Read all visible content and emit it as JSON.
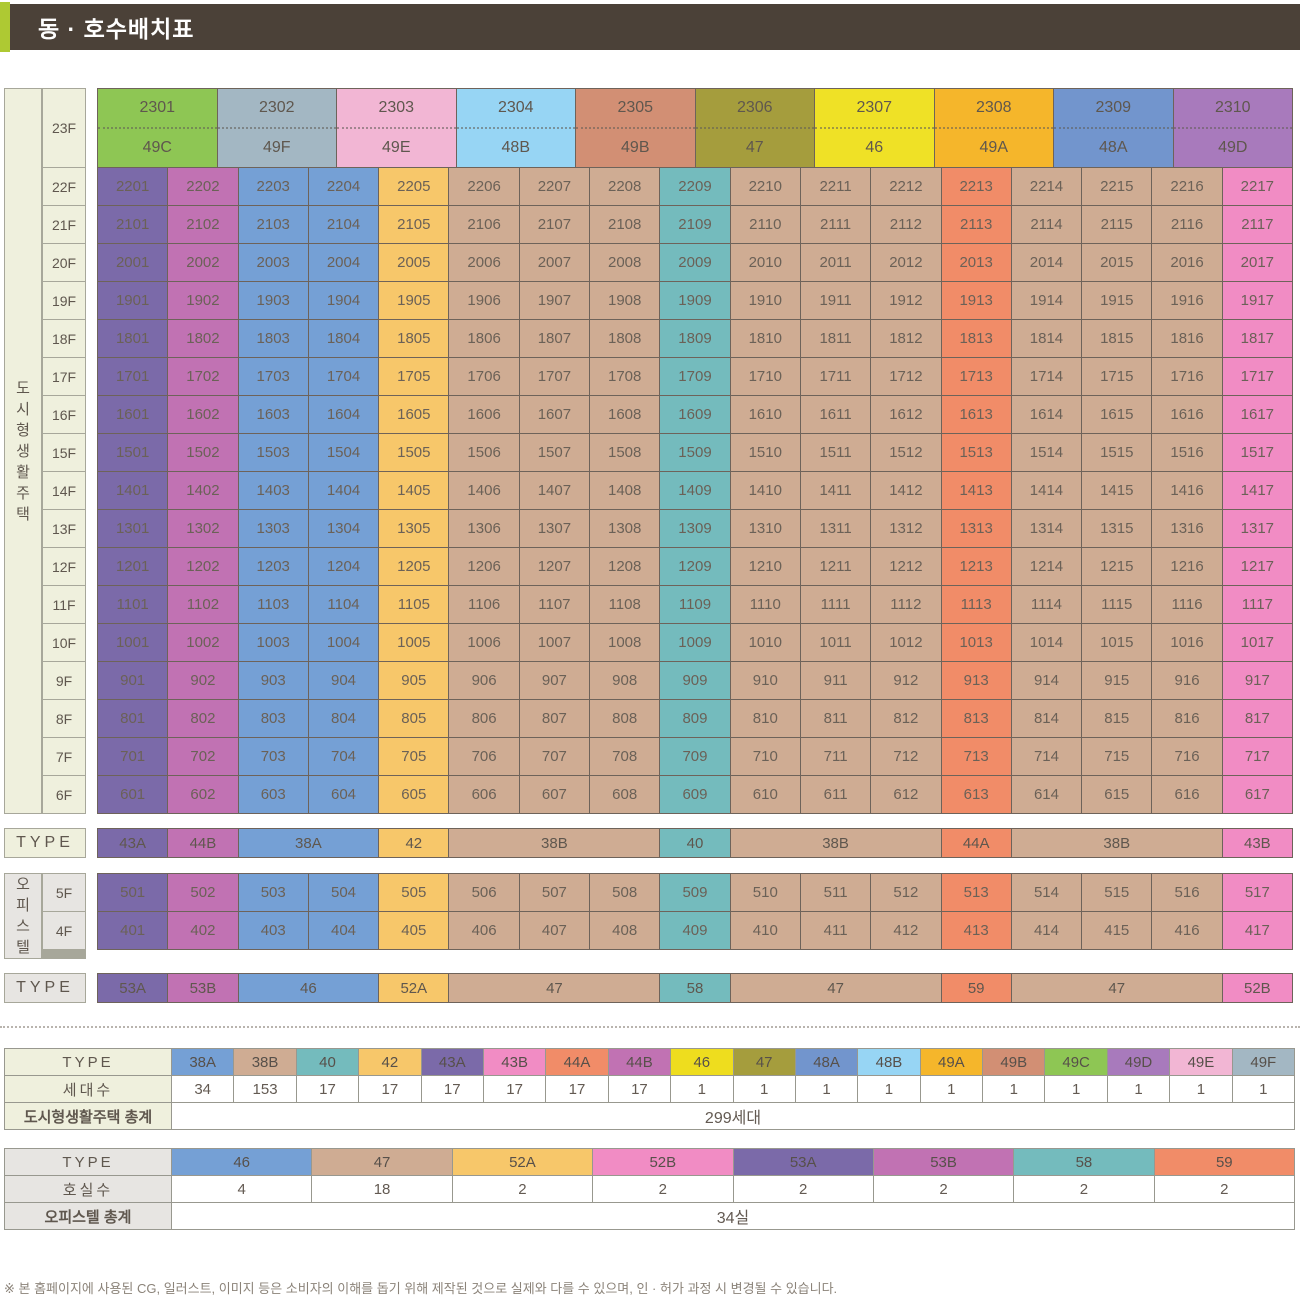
{
  "title": "동 · 호수배치표",
  "colors": {
    "accent_green": "#aec933",
    "header_brown": "#4b4138",
    "cream_label": "#eff0dd",
    "gray_label": "#e7e5e2",
    "grid_border": "#6e635a",
    "label_border": "#a7a79a",
    "text": "#635a52"
  },
  "column_colors": [
    "#7b6aa9",
    "#c172b3",
    "#75a0d5",
    "#75a0d5",
    "#f7c76a",
    "#cfac93",
    "#cfac93",
    "#cfac93",
    "#74bbbd",
    "#cfac93",
    "#cfac93",
    "#cfac93",
    "#f18c68",
    "#cfac93",
    "#cfac93",
    "#cfac93",
    "#f18cc4"
  ],
  "housing": {
    "side_label": "도시형생활주택",
    "type_row_label": "TYPE",
    "floor23": {
      "label": "23F",
      "units": [
        {
          "no": "2301",
          "type": "49C",
          "color": "#8ec654"
        },
        {
          "no": "2302",
          "type": "49F",
          "color": "#a3b7c3"
        },
        {
          "no": "2303",
          "type": "49E",
          "color": "#f2b6d4"
        },
        {
          "no": "2304",
          "type": "48B",
          "color": "#97d5f4"
        },
        {
          "no": "2305",
          "type": "49B",
          "color": "#d28f74"
        },
        {
          "no": "2306",
          "type": "47",
          "color": "#a59d3d"
        },
        {
          "no": "2307",
          "type": "46",
          "color": "#efe126"
        },
        {
          "no": "2308",
          "type": "49A",
          "color": "#f5b62b"
        },
        {
          "no": "2309",
          "type": "48A",
          "color": "#7295cd"
        },
        {
          "no": "2310",
          "type": "49D",
          "color": "#a87abc"
        }
      ]
    },
    "floors": [
      {
        "label": "22F",
        "units": [
          "2201",
          "2202",
          "2203",
          "2204",
          "2205",
          "2206",
          "2207",
          "2208",
          "2209",
          "2210",
          "2211",
          "2212",
          "2213",
          "2214",
          "2215",
          "2216",
          "2217"
        ]
      },
      {
        "label": "21F",
        "units": [
          "2101",
          "2102",
          "2103",
          "2104",
          "2105",
          "2106",
          "2107",
          "2108",
          "2109",
          "2110",
          "2111",
          "2112",
          "2113",
          "2114",
          "2115",
          "2116",
          "2117"
        ]
      },
      {
        "label": "20F",
        "units": [
          "2001",
          "2002",
          "2003",
          "2004",
          "2005",
          "2006",
          "2007",
          "2008",
          "2009",
          "2010",
          "2011",
          "2012",
          "2013",
          "2014",
          "2015",
          "2016",
          "2017"
        ]
      },
      {
        "label": "19F",
        "units": [
          "1901",
          "1902",
          "1903",
          "1904",
          "1905",
          "1906",
          "1907",
          "1908",
          "1909",
          "1910",
          "1911",
          "1912",
          "1913",
          "1914",
          "1915",
          "1916",
          "1917"
        ]
      },
      {
        "label": "18F",
        "units": [
          "1801",
          "1802",
          "1803",
          "1804",
          "1805",
          "1806",
          "1807",
          "1808",
          "1809",
          "1810",
          "1811",
          "1812",
          "1813",
          "1814",
          "1815",
          "1816",
          "1817"
        ]
      },
      {
        "label": "17F",
        "units": [
          "1701",
          "1702",
          "1703",
          "1704",
          "1705",
          "1706",
          "1707",
          "1708",
          "1709",
          "1710",
          "1711",
          "1712",
          "1713",
          "1714",
          "1715",
          "1716",
          "1717"
        ]
      },
      {
        "label": "16F",
        "units": [
          "1601",
          "1602",
          "1603",
          "1604",
          "1605",
          "1606",
          "1607",
          "1608",
          "1609",
          "1610",
          "1611",
          "1612",
          "1613",
          "1614",
          "1615",
          "1616",
          "1617"
        ]
      },
      {
        "label": "15F",
        "units": [
          "1501",
          "1502",
          "1503",
          "1504",
          "1505",
          "1506",
          "1507",
          "1508",
          "1509",
          "1510",
          "1511",
          "1512",
          "1513",
          "1514",
          "1515",
          "1516",
          "1517"
        ]
      },
      {
        "label": "14F",
        "units": [
          "1401",
          "1402",
          "1403",
          "1404",
          "1405",
          "1406",
          "1407",
          "1408",
          "1409",
          "1410",
          "1411",
          "1412",
          "1413",
          "1414",
          "1415",
          "1416",
          "1417"
        ]
      },
      {
        "label": "13F",
        "units": [
          "1301",
          "1302",
          "1303",
          "1304",
          "1305",
          "1306",
          "1307",
          "1308",
          "1309",
          "1310",
          "1311",
          "1312",
          "1313",
          "1314",
          "1315",
          "1316",
          "1317"
        ]
      },
      {
        "label": "12F",
        "units": [
          "1201",
          "1202",
          "1203",
          "1204",
          "1205",
          "1206",
          "1207",
          "1208",
          "1209",
          "1210",
          "1211",
          "1212",
          "1213",
          "1214",
          "1215",
          "1216",
          "1217"
        ]
      },
      {
        "label": "11F",
        "units": [
          "1101",
          "1102",
          "1103",
          "1104",
          "1105",
          "1106",
          "1107",
          "1108",
          "1109",
          "1110",
          "1111",
          "1112",
          "1113",
          "1114",
          "1115",
          "1116",
          "1117"
        ]
      },
      {
        "label": "10F",
        "units": [
          "1001",
          "1002",
          "1003",
          "1004",
          "1005",
          "1006",
          "1007",
          "1008",
          "1009",
          "1010",
          "1011",
          "1012",
          "1013",
          "1014",
          "1015",
          "1016",
          "1017"
        ]
      },
      {
        "label": "9F",
        "units": [
          "901",
          "902",
          "903",
          "904",
          "905",
          "906",
          "907",
          "908",
          "909",
          "910",
          "911",
          "912",
          "913",
          "914",
          "915",
          "916",
          "917"
        ]
      },
      {
        "label": "8F",
        "units": [
          "801",
          "802",
          "803",
          "804",
          "805",
          "806",
          "807",
          "808",
          "809",
          "810",
          "811",
          "812",
          "813",
          "814",
          "815",
          "816",
          "817"
        ]
      },
      {
        "label": "7F",
        "units": [
          "701",
          "702",
          "703",
          "704",
          "705",
          "706",
          "707",
          "708",
          "709",
          "710",
          "711",
          "712",
          "713",
          "714",
          "715",
          "716",
          "717"
        ]
      },
      {
        "label": "6F",
        "units": [
          "601",
          "602",
          "603",
          "604",
          "605",
          "606",
          "607",
          "608",
          "609",
          "610",
          "611",
          "612",
          "613",
          "614",
          "615",
          "616",
          "617"
        ]
      }
    ],
    "type_row": [
      {
        "label": "43A",
        "span": 1,
        "color": "#7b6aa9"
      },
      {
        "label": "44B",
        "span": 1,
        "color": "#c172b3"
      },
      {
        "label": "38A",
        "span": 2,
        "color": "#75a0d5"
      },
      {
        "label": "42",
        "span": 1,
        "color": "#f7c76a"
      },
      {
        "label": "38B",
        "span": 3,
        "color": "#cfac93"
      },
      {
        "label": "40",
        "span": 1,
        "color": "#74bbbd"
      },
      {
        "label": "38B",
        "span": 3,
        "color": "#cfac93"
      },
      {
        "label": "44A",
        "span": 1,
        "color": "#f18c68"
      },
      {
        "label": "38B",
        "span": 3,
        "color": "#cfac93"
      },
      {
        "label": "43B",
        "span": 1,
        "color": "#f18cc4"
      }
    ]
  },
  "officetel": {
    "side_label": "오피스텔",
    "type_row_label": "TYPE",
    "floors": [
      {
        "label": "5F",
        "units": [
          "501",
          "502",
          "503",
          "504",
          "505",
          "506",
          "507",
          "508",
          "509",
          "510",
          "511",
          "512",
          "513",
          "514",
          "515",
          "516",
          "517"
        ]
      },
      {
        "label": "4F",
        "units": [
          "401",
          "402",
          "403",
          "404",
          "405",
          "406",
          "407",
          "408",
          "409",
          "410",
          "411",
          "412",
          "413",
          "414",
          "415",
          "416",
          "417"
        ]
      }
    ],
    "type_row": [
      {
        "label": "53A",
        "span": 1,
        "color": "#7b6aa9"
      },
      {
        "label": "53B",
        "span": 1,
        "color": "#c172b3"
      },
      {
        "label": "46",
        "span": 2,
        "color": "#75a0d5"
      },
      {
        "label": "52A",
        "span": 1,
        "color": "#f7c76a"
      },
      {
        "label": "47",
        "span": 3,
        "color": "#cfac93"
      },
      {
        "label": "58",
        "span": 1,
        "color": "#74bbbd"
      },
      {
        "label": "47",
        "span": 3,
        "color": "#cfac93"
      },
      {
        "label": "59",
        "span": 1,
        "color": "#f18c68"
      },
      {
        "label": "47",
        "span": 3,
        "color": "#cfac93"
      },
      {
        "label": "52B",
        "span": 1,
        "color": "#f18cc4"
      }
    ]
  },
  "summary_housing": {
    "type_label": "TYPE",
    "count_label": "세대수",
    "total_label": "도시형생활주택 총계",
    "total_value": "299세대",
    "types": [
      {
        "type": "38A",
        "color": "#75a0d5",
        "count": "34"
      },
      {
        "type": "38B",
        "color": "#cfac93",
        "count": "153"
      },
      {
        "type": "40",
        "color": "#74bbbd",
        "count": "17"
      },
      {
        "type": "42",
        "color": "#f7c76a",
        "count": "17"
      },
      {
        "type": "43A",
        "color": "#7b6aa9",
        "count": "17"
      },
      {
        "type": "43B",
        "color": "#f18cc4",
        "count": "17"
      },
      {
        "type": "44A",
        "color": "#f18c68",
        "count": "17"
      },
      {
        "type": "44B",
        "color": "#c172b3",
        "count": "17"
      },
      {
        "type": "46",
        "color": "#eedd1e",
        "count": "1"
      },
      {
        "type": "47",
        "color": "#a59d3d",
        "count": "1"
      },
      {
        "type": "48A",
        "color": "#7295cd",
        "count": "1"
      },
      {
        "type": "48B",
        "color": "#97d5f4",
        "count": "1"
      },
      {
        "type": "49A",
        "color": "#f5b62b",
        "count": "1"
      },
      {
        "type": "49B",
        "color": "#d28f74",
        "count": "1"
      },
      {
        "type": "49C",
        "color": "#8ec654",
        "count": "1"
      },
      {
        "type": "49D",
        "color": "#a87abc",
        "count": "1"
      },
      {
        "type": "49E",
        "color": "#f2b6d4",
        "count": "1"
      },
      {
        "type": "49F",
        "color": "#a3b7c3",
        "count": "1"
      }
    ]
  },
  "summary_officetel": {
    "type_label": "TYPE",
    "count_label": "호실수",
    "total_label": "오피스텔 총계",
    "total_value": "34실",
    "types": [
      {
        "type": "46",
        "color": "#75a0d5",
        "count": "4"
      },
      {
        "type": "47",
        "color": "#cfac93",
        "count": "18"
      },
      {
        "type": "52A",
        "color": "#f7c76a",
        "count": "2"
      },
      {
        "type": "52B",
        "color": "#f18cc4",
        "count": "2"
      },
      {
        "type": "53A",
        "color": "#7b6aa9",
        "count": "2"
      },
      {
        "type": "53B",
        "color": "#c172b3",
        "count": "2"
      },
      {
        "type": "58",
        "color": "#74bbbd",
        "count": "2"
      },
      {
        "type": "59",
        "color": "#f18c68",
        "count": "2"
      }
    ]
  },
  "footer": {
    "disclaimer": "※ 본 홈페이지에 사용된 CG, 일러스트, 이미지 등은 소비자의 이해를 돕기 위해 제작된 것으로 실제와 다를 수 있으며, 인 · 허가 과정 시 변경될 수 있습니다."
  }
}
